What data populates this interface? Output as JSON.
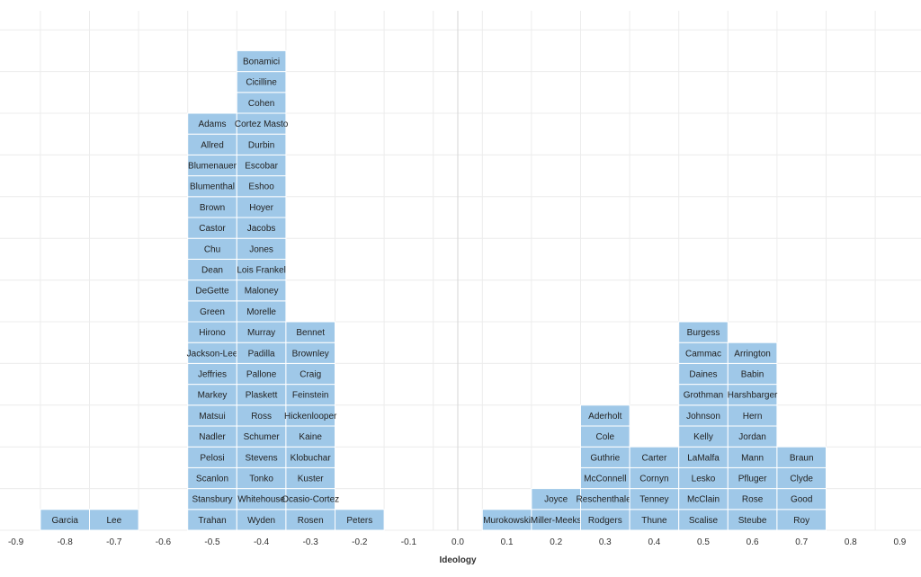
{
  "chart_data": {
    "type": "histogram-dot",
    "xlabel": "Ideology",
    "xlim": [
      -0.9,
      0.9
    ],
    "bin_width": 0.1,
    "x_ticks": [
      "-0.9",
      "-0.8",
      "-0.7",
      "-0.6",
      "-0.5",
      "-0.4",
      "-0.3",
      "-0.2",
      "-0.1",
      "0.0",
      "0.1",
      "0.2",
      "0.3",
      "0.4",
      "0.5",
      "0.6",
      "0.7",
      "0.8",
      "0.9"
    ],
    "grid": true,
    "color": "#9fc8e8",
    "columns": [
      {
        "bin": -0.8,
        "names": [
          "Garcia"
        ]
      },
      {
        "bin": -0.7,
        "names": [
          "Lee"
        ]
      },
      {
        "bin": -0.5,
        "names": [
          "Trahan",
          "Stansbury",
          "Scanlon",
          "Pelosi",
          "Nadler",
          "Matsui",
          "Markey",
          "Jeffries",
          "Jackson-Lee",
          "Hirono",
          "Green",
          "DeGette",
          "Dean",
          "Chu",
          "Castor",
          "Brown",
          "Blumenthal",
          "Blumenauer",
          "Allred",
          "Adams"
        ]
      },
      {
        "bin": -0.4,
        "names": [
          "Wyden",
          "Whitehouse",
          "Tonko",
          "Stevens",
          "Schumer",
          "Ross",
          "Plaskett",
          "Pallone",
          "Padilla",
          "Murray",
          "Morelle",
          "Maloney",
          "Lois Frankel",
          "Jones",
          "Jacobs",
          "Hoyer",
          "Eshoo",
          "Escobar",
          "Durbin",
          "Cortez Masto",
          "Cohen",
          "Cicilline",
          "Bonamici"
        ]
      },
      {
        "bin": -0.3,
        "names": [
          "Rosen",
          "Ocasio-Cortez",
          "Kuster",
          "Klobuchar",
          "Kaine",
          "Hickenlooper",
          "Feinstein",
          "Craig",
          "Brownley",
          "Bennet"
        ]
      },
      {
        "bin": -0.2,
        "names": [
          "Peters"
        ]
      },
      {
        "bin": 0.1,
        "names": [
          "Murokowski"
        ]
      },
      {
        "bin": 0.2,
        "names": [
          "Miller-Meeks",
          "Joyce"
        ]
      },
      {
        "bin": 0.3,
        "names": [
          "Rodgers",
          "Reschenthaler",
          "McConnell",
          "Guthrie",
          "Cole",
          "Aderholt"
        ]
      },
      {
        "bin": 0.4,
        "names": [
          "Thune",
          "Tenney",
          "Cornyn",
          "Carter"
        ]
      },
      {
        "bin": 0.5,
        "names": [
          "Scalise",
          "McClain",
          "Lesko",
          "LaMalfa",
          "Kelly",
          "Johnson",
          "Grothman",
          "Daines",
          "Cammac",
          "Burgess"
        ]
      },
      {
        "bin": 0.6,
        "names": [
          "Steube",
          "Rose",
          "Pfluger",
          "Mann",
          "Jordan",
          "Hern",
          "Harshbarger",
          "Babin",
          "Arrington"
        ]
      },
      {
        "bin": 0.7,
        "names": [
          "Roy",
          "Good",
          "Clyde",
          "Braun"
        ]
      }
    ]
  }
}
